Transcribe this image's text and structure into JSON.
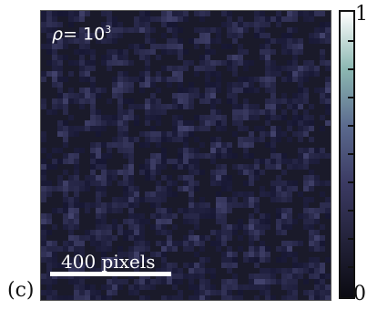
{
  "figure": {
    "panel_label": "(c)",
    "rho_symbol": "ρ",
    "rho_equals": "= 10",
    "rho_exponent": "3",
    "scale_bar_label": "400 pixels",
    "colorbar": {
      "max_label": "1",
      "min_label": "0",
      "colors": [
        "#0b0b12",
        "#23223a",
        "#3b3a63",
        "#5b6a8e",
        "#8cb8b2",
        "#ffffff"
      ]
    },
    "image_background": "#1a1a2a",
    "speckle_color": "#4a4a80"
  }
}
